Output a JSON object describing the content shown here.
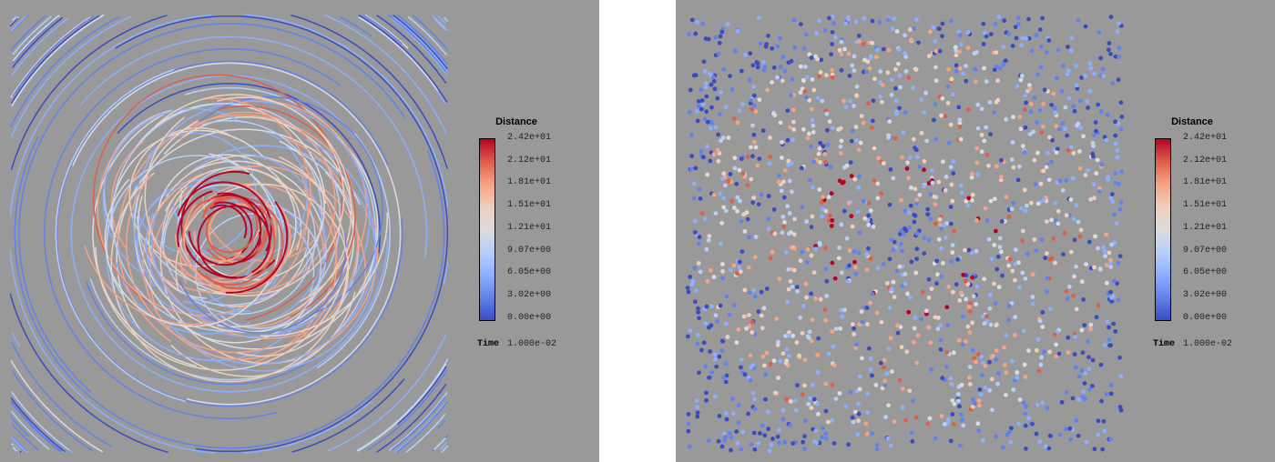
{
  "colorbar": {
    "title": "Distance",
    "labels": [
      "2.42e+01",
      "2.12e+01",
      "1.81e+01",
      "1.51e+01",
      "1.21e+01",
      "9.07e+00",
      "6.05e+00",
      "3.02e+00",
      "0.00e+00"
    ],
    "range": [
      0,
      24.2
    ],
    "colors": [
      "#3b4cc0",
      "#6282ea",
      "#8db0fe",
      "#b8cff8",
      "#dddcdc",
      "#eecfbd",
      "#f6a385",
      "#dd5f4b",
      "#b40426"
    ]
  },
  "time": {
    "label": "Time",
    "value": "1.000e-02"
  },
  "panels": [
    {
      "name": "streamlines",
      "style": "trajectories"
    },
    {
      "name": "particles",
      "style": "points"
    }
  ],
  "background": "#999999"
}
